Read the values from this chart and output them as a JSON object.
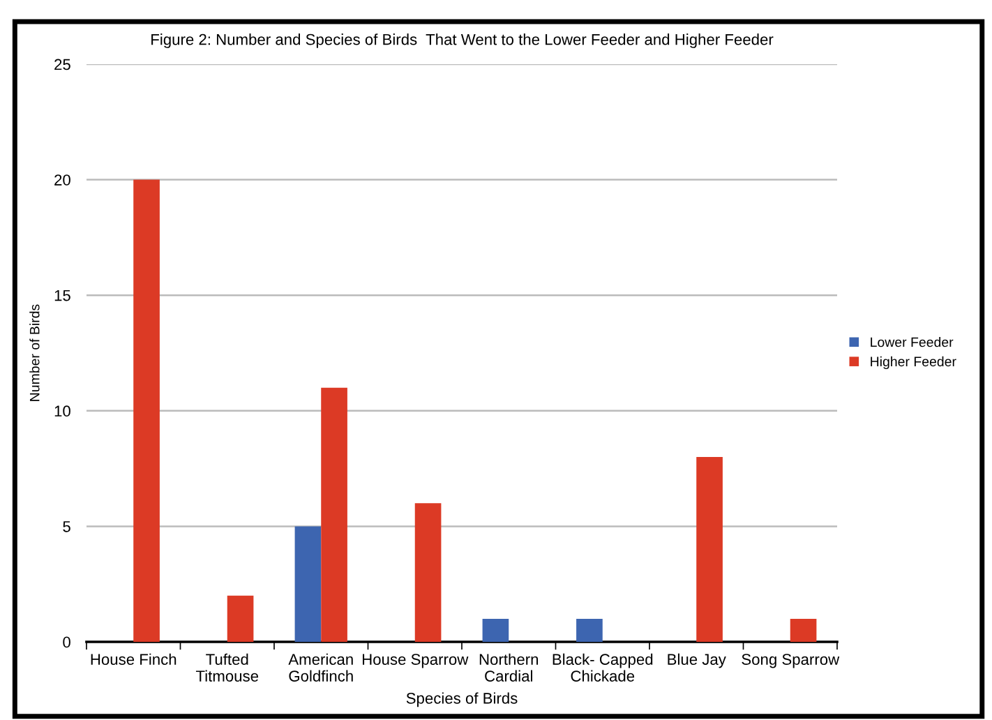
{
  "chart_data": {
    "type": "bar",
    "title": "Figure 2: Number and Species of Birds  That Went to the Lower Feeder and Higher Feeder",
    "xlabel": "Species of Birds",
    "ylabel": "Number of Birds",
    "categories": [
      "House Finch",
      "Tufted\nTitmouse",
      "American\nGoldfinch",
      "House Sparrow",
      "Northern\nCardial",
      "Black- Capped\nChickade",
      "Blue Jay",
      "Song Sparrow"
    ],
    "series": [
      {
        "name": "Lower Feeder",
        "color": "#3d65b0",
        "values": [
          0,
          0,
          5,
          0,
          1,
          1,
          0,
          0
        ]
      },
      {
        "name": "Higher Feeder",
        "color": "#dc3a25",
        "values": [
          20,
          2,
          11,
          6,
          0,
          0,
          8,
          1
        ]
      }
    ],
    "ylim": [
      0,
      25
    ],
    "yticks": [
      0,
      5,
      10,
      15,
      20,
      25
    ],
    "grid": "y",
    "legend": "right"
  }
}
